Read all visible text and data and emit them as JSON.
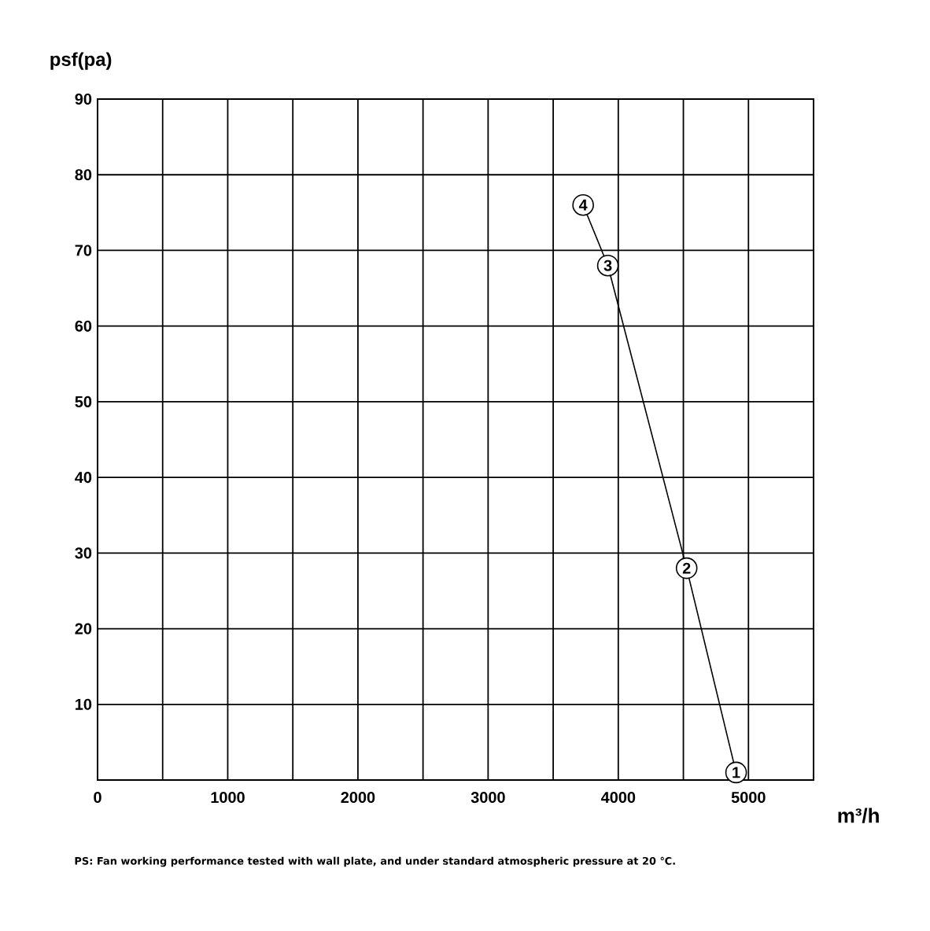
{
  "chart_data": {
    "type": "line",
    "xlabel": "m³/h",
    "ylabel": "psf(pa)",
    "x": [
      3730,
      3920,
      4525,
      4905
    ],
    "series": [
      {
        "color": "#000000",
        "values": [
          76,
          68,
          28,
          1
        ]
      }
    ],
    "xlim": [
      0,
      5500
    ],
    "xticks": [
      0,
      {
        "value": 500,
        "label": null
      },
      1000,
      {
        "value": 1500,
        "label": null
      },
      2000,
      {
        "value": 2500,
        "label": null
      },
      3000,
      {
        "value": 3500,
        "label": null
      },
      4000,
      {
        "value": 4500,
        "label": null
      },
      5000
    ],
    "ylim": [
      0,
      90
    ],
    "yticks": [
      10,
      20,
      30,
      40,
      50,
      60,
      70,
      80,
      90
    ],
    "grid": true,
    "marker": "circle",
    "line_style": "solid",
    "annotations": [
      {
        "text": "1",
        "x": 4905,
        "y": 1
      },
      {
        "text": "2",
        "x": 4525,
        "y": 28
      },
      {
        "text": "3",
        "x": 3920,
        "y": 68
      },
      {
        "text": "4",
        "x": 3730,
        "y": 76
      },
      "PS: Fan working performance tested with wall plate, and under standard atmospheric pressure at 20 ℃."
    ]
  }
}
